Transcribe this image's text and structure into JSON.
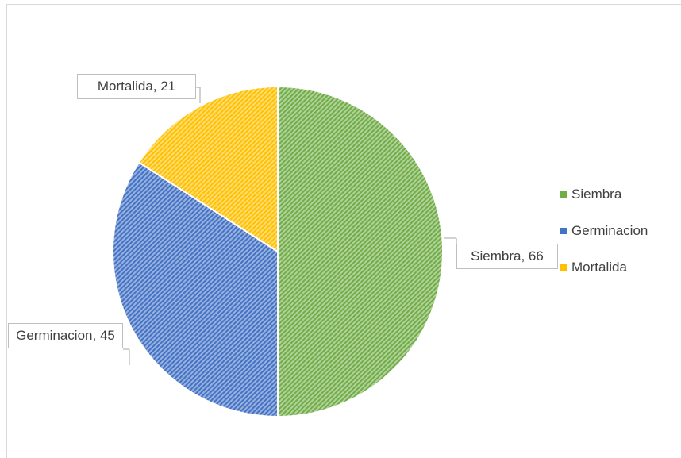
{
  "chart_data": {
    "type": "pie",
    "categories": [
      "Siembra",
      "Germinacion",
      "Mortalida"
    ],
    "values": [
      66,
      45,
      21
    ],
    "value_labels": [
      "Siembra, 66",
      "Germinacion, 45",
      "Mortalida, 21"
    ],
    "colors": [
      "#70ad47",
      "#4472c4",
      "#ffc000"
    ],
    "legend": "right"
  }
}
